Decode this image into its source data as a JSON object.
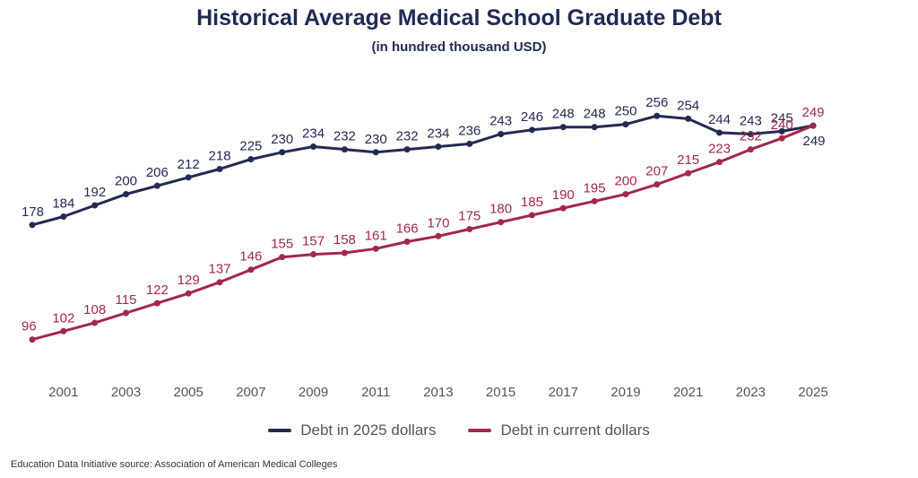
{
  "chart_data": {
    "type": "line",
    "title": "Historical Average Medical School Graduate Debt",
    "subtitle": "(in hundred thousand USD)",
    "x": [
      2000,
      2001,
      2002,
      2003,
      2004,
      2005,
      2006,
      2007,
      2008,
      2009,
      2010,
      2011,
      2012,
      2013,
      2014,
      2015,
      2016,
      2017,
      2018,
      2019,
      2020,
      2021,
      2022,
      2023,
      2024,
      2025
    ],
    "x_tick_labels": [
      "2001",
      "2003",
      "2005",
      "2007",
      "2009",
      "2011",
      "2013",
      "2015",
      "2017",
      "2019",
      "2021",
      "2023",
      "2025"
    ],
    "series": [
      {
        "name": "Debt in 2025 dollars",
        "color": "#232a52",
        "values": [
          178,
          184,
          192,
          200,
          206,
          212,
          218,
          225,
          230,
          234,
          232,
          230,
          232,
          234,
          236,
          243,
          246,
          248,
          248,
          250,
          256,
          254,
          244,
          243,
          245,
          249
        ]
      },
      {
        "name": "Debt in current dollars",
        "color": "#a3284a",
        "values": [
          96,
          102,
          108,
          115,
          122,
          129,
          137,
          146,
          155,
          157,
          158,
          161,
          166,
          170,
          175,
          180,
          185,
          190,
          195,
          200,
          207,
          215,
          223,
          232,
          240,
          249
        ]
      }
    ],
    "xlabel": "",
    "ylabel": "",
    "ylim": [
      90,
      260
    ],
    "grid": false,
    "data_labels": true,
    "legend_position": "bottom"
  },
  "source_note": "Education Data Initiative source: Association of American Medical Colleges"
}
